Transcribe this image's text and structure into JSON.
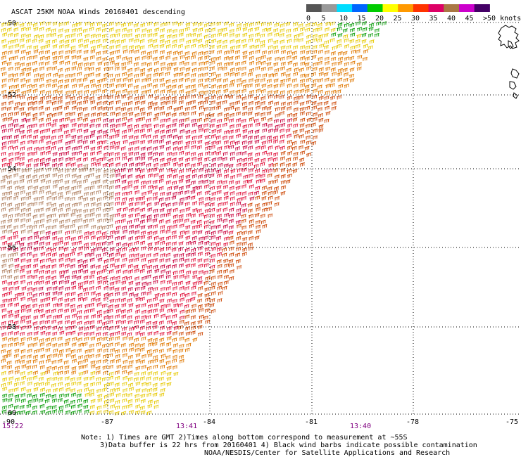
{
  "title": "ASCAT 25KM NOAA Winds 20160401 descending",
  "colorbar": {
    "labels": [
      "0",
      "5",
      "10",
      "15",
      "20",
      "25",
      "30",
      "35",
      "40",
      "45",
      ">50 knots"
    ],
    "colors": [
      "#555555",
      "#999999",
      "#00ddff",
      "#0066ff",
      "#00cc00",
      "#ffff00",
      "#ff9900",
      "#ff3300",
      "#dd0066",
      "#aa7744",
      "#cc00cc",
      "#440066"
    ]
  },
  "lat_labels": [
    "-50",
    "-52",
    "-54",
    "-56",
    "-58",
    "-60"
  ],
  "lon_labels": [
    "-90",
    "-87",
    "-84",
    "-81",
    "-78",
    "-75"
  ],
  "times": [
    {
      "label": "15:22",
      "color": "#800080"
    },
    {
      "label": "13:41",
      "color": "#800080"
    },
    {
      "label": "13:40",
      "color": "#800080"
    }
  ],
  "notes": [
    "Note: 1) Times are GMT 2)Times along bottom correspond to measurement at ~55S",
    "3)Data buffer is 22 hrs from 20160401 4) Black wind barbs indicate possible contamination",
    "NOAA/NESDIS/Center for Satellite Applications and Research"
  ],
  "wind_speed_colors": {
    "green": "#009900",
    "yellow": "#e6c800",
    "orange": "#e07800",
    "dark_orange": "#cc4400",
    "red": "#e0103a",
    "crimson": "#c8003c",
    "tan": "#b08060"
  }
}
